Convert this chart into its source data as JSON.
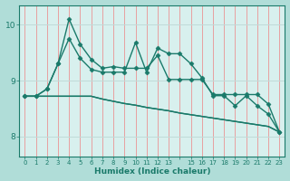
{
  "title": "",
  "xlabel": "Humidex (Indice chaleur)",
  "ylabel": "",
  "bg_color": "#b0ddd8",
  "plot_bg_color": "#d8f0ee",
  "vgrid_color": "#e8a0a0",
  "hgrid_color": "#c0dbd8",
  "line_color": "#1a7a6a",
  "marker": "D",
  "markersize": 2.5,
  "linewidth": 1.0,
  "xlim": [
    -0.5,
    23.5
  ],
  "ylim": [
    7.65,
    10.35
  ],
  "yticks": [
    8,
    9,
    10
  ],
  "lines": [
    [
      8.72,
      8.72,
      8.85,
      9.3,
      9.75,
      9.4,
      9.2,
      9.15,
      9.15,
      9.15,
      9.68,
      9.15,
      9.58,
      9.48,
      9.48,
      9.3,
      9.05,
      8.73,
      8.73,
      8.55,
      8.73,
      8.55,
      8.4,
      8.08
    ],
    [
      8.72,
      8.72,
      8.85,
      9.3,
      10.1,
      9.65,
      9.38,
      9.22,
      9.25,
      9.22,
      9.22,
      9.22,
      9.45,
      9.02,
      9.02,
      9.02,
      9.02,
      8.75,
      8.75,
      8.75,
      8.75,
      8.75,
      8.58,
      8.08
    ],
    [
      8.72,
      8.72,
      8.72,
      8.72,
      8.72,
      8.72,
      8.72,
      8.67,
      8.63,
      8.59,
      8.56,
      8.52,
      8.49,
      8.46,
      8.42,
      8.39,
      8.36,
      8.33,
      8.3,
      8.27,
      8.24,
      8.21,
      8.18,
      8.08
    ],
    [
      8.72,
      8.72,
      8.72,
      8.72,
      8.72,
      8.72,
      8.72,
      8.67,
      8.63,
      8.59,
      8.56,
      8.52,
      8.49,
      8.46,
      8.42,
      8.39,
      8.36,
      8.33,
      8.3,
      8.27,
      8.24,
      8.21,
      8.18,
      8.08
    ]
  ],
  "line_markers": [
    true,
    true,
    false,
    false
  ],
  "xtick_labels": [
    "0",
    "1",
    "2",
    "3",
    "4",
    "5",
    "6",
    "7",
    "8",
    "9",
    "10",
    "11",
    "12",
    "13",
    "",
    "15",
    "16",
    "17",
    "18",
    "19",
    "20",
    "21",
    "22",
    "23"
  ]
}
